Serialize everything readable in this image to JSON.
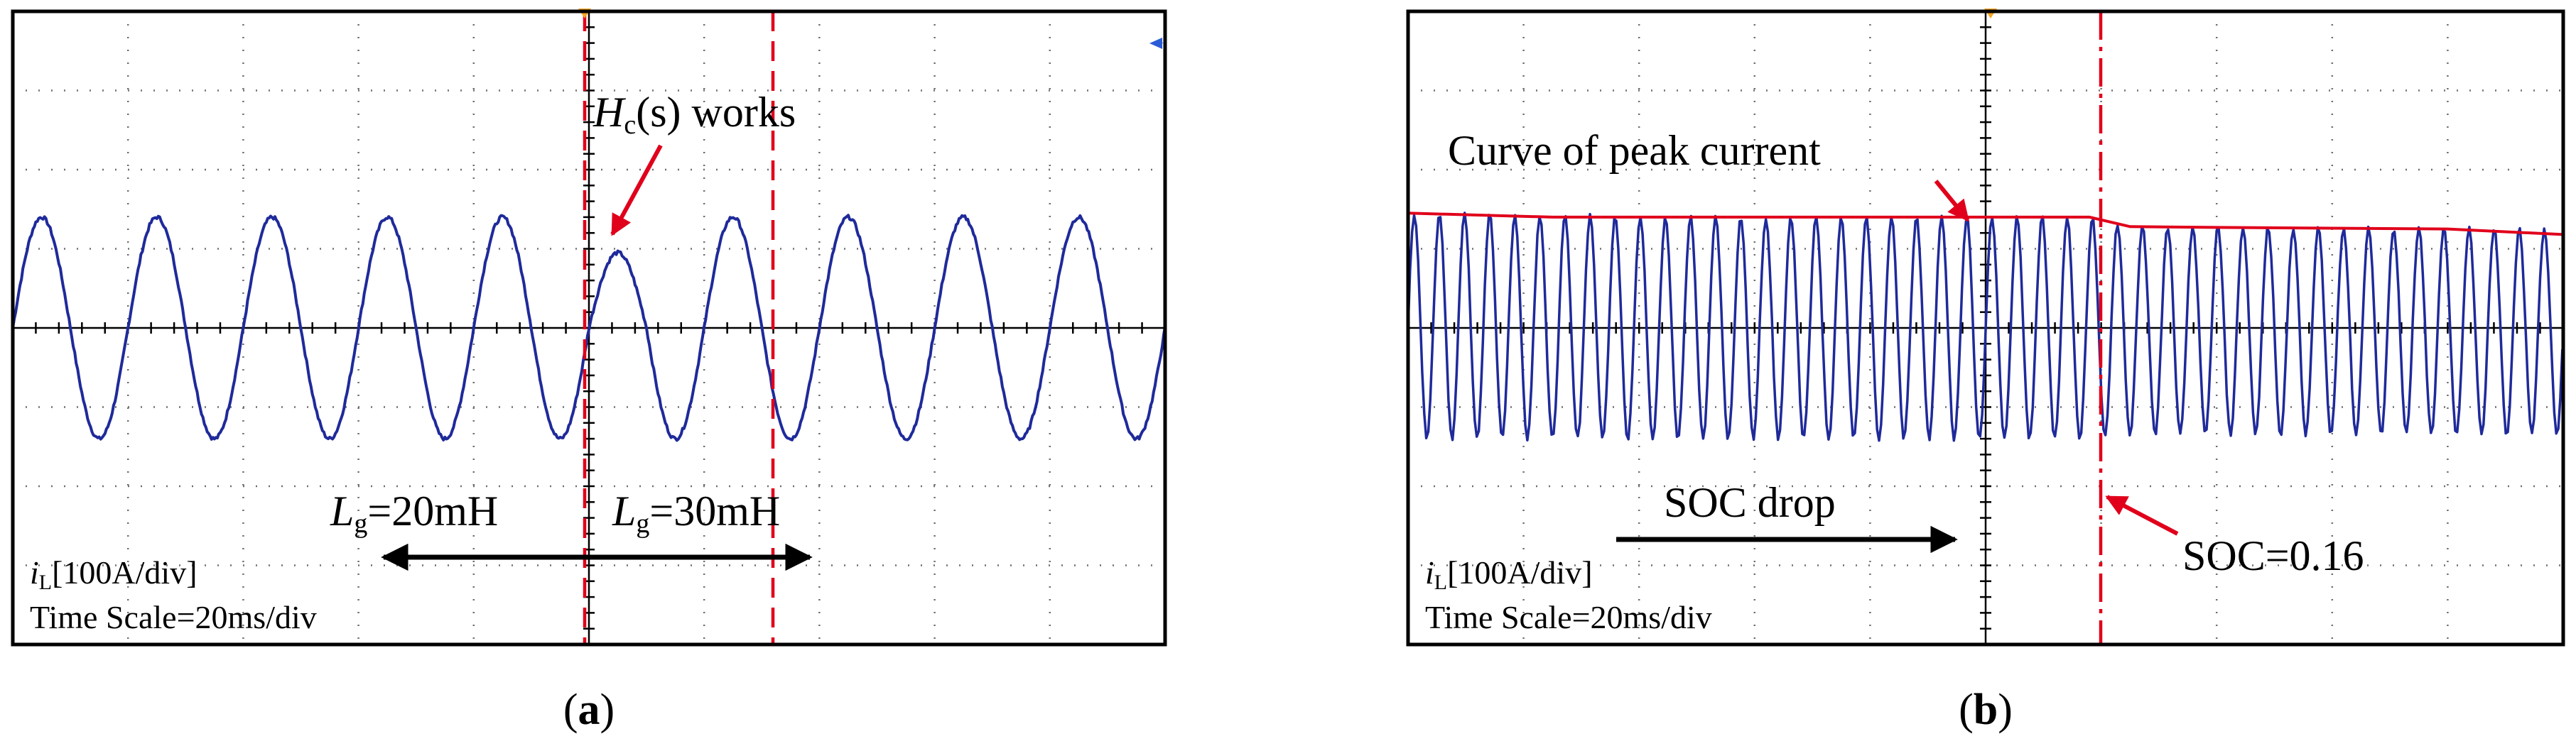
{
  "panel_a": {
    "annotation_pre": "H",
    "annotation_sub": "c",
    "annotation_post": "(s) works",
    "lg1_pre": "L",
    "lg1_sub": "g",
    "lg1_post": "=20mH",
    "lg2_pre": "L",
    "lg2_sub": "g",
    "lg2_post": "=30mH",
    "scale_pre": "i",
    "scale_sub": "L",
    "scale_post": "[100A/div]",
    "time_scale": "Time Scale=20ms/div",
    "caption_open": "(",
    "caption_letter": "a",
    "caption_close": ")"
  },
  "panel_b": {
    "curve_label": "Curve of peak current",
    "soc_drop": "SOC drop",
    "soc_value": "SOC=0.16",
    "scale_pre": "i",
    "scale_sub": "L",
    "scale_post": "[100A/div]",
    "time_scale": "Time Scale=20ms/div",
    "caption_open": "(",
    "caption_letter": "b",
    "caption_close": ")"
  },
  "colors": {
    "trace": "#1f2a9a",
    "marker": "#e0001b",
    "trigger": "#f5a623"
  },
  "chart_data": [
    {
      "type": "line",
      "title": "",
      "xlabel": "Time Scale=20ms/div",
      "ylabel": "iL[100A/div]",
      "grid": true,
      "xlim": [
        -100,
        100
      ],
      "ylim": [
        -4,
        4
      ],
      "events": [
        {
          "label": "Hc(s) works",
          "x": 0
        },
        {
          "label": "Lg=30mH region end",
          "x": 30
        }
      ],
      "series": [
        {
          "segments": [
            {
              "x_range": [
                -100,
                0
              ],
              "amplitude": 1.4,
              "frequency_hz": 50,
              "phase_zero_at": 0
            },
            {
              "x_range": [
                0,
                100
              ],
              "amplitude": 1.4,
              "frequency_hz": 50,
              "phase_zero_at": 0,
              "initial_dip_peak": 0.95
            }
          ]
        }
      ]
    },
    {
      "type": "line",
      "title": "",
      "xlabel": "Time Scale=20ms/div",
      "ylabel": "iL[100A/div]",
      "grid": true,
      "xlim": [
        -100,
        100
      ],
      "ylim": [
        -4,
        4
      ],
      "events": [
        {
          "label": "SOC=0.16",
          "x": 19
        }
      ],
      "series": [
        {
          "frequency_hz": 50,
          "envelope": {
            "x": [
              -100,
              -50,
              0,
              18,
              25,
              100
            ],
            "peak": [
              1.45,
              1.4,
              1.4,
              1.4,
              1.28,
              1.25
            ],
            "trough": [
              -1.4,
              -1.4,
              -1.4,
              -1.4,
              -1.35,
              -1.35
            ]
          }
        },
        {
          "name": "Curve of peak current",
          "x": [
            -100,
            -75,
            -50,
            -25,
            0,
            10,
            18,
            25,
            40,
            60,
            80,
            100
          ],
          "y": [
            1.45,
            1.4,
            1.4,
            1.4,
            1.4,
            1.4,
            1.4,
            1.28,
            1.27,
            1.26,
            1.25,
            1.18
          ]
        }
      ]
    }
  ]
}
